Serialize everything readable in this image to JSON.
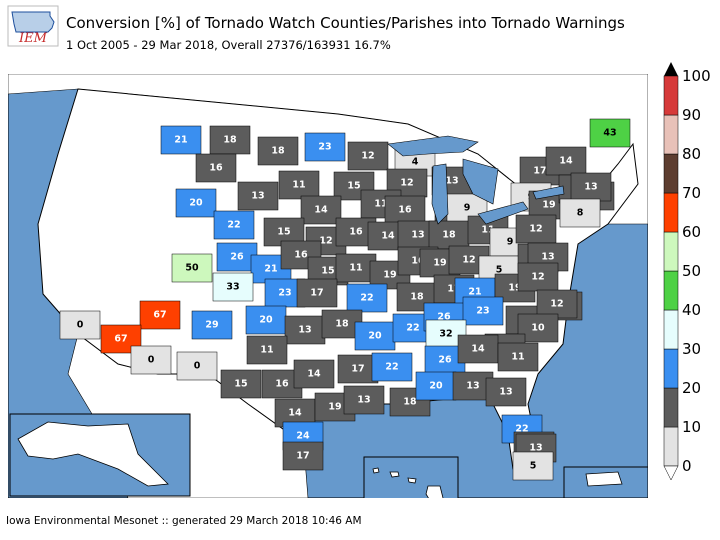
{
  "logo": {
    "text": "IEM"
  },
  "header": {
    "title": "Conversion [%] of Tornado Watch Counties/Parishes into Tornado Warnings",
    "subtitle": "1 Oct 2005 - 29 Mar 2018, Overall 27376/163931 16.7%"
  },
  "footer": {
    "text": "Iowa Environmental Mesonet :: generated 29 March 2018 10:46 AM"
  },
  "colors": {
    "ocean": "#6699cc",
    "land": "#ffffff",
    "border": "#000000",
    "bin_0_10": "#e3e3e3",
    "bin_10_20": "#5c5c5c",
    "bin_20_30": "#3a8ff0",
    "bin_30_40": "#e6fdfd",
    "bin_40_50": "#4ed145",
    "bin_50_60": "#cdf8bd",
    "bin_60_70": "#fe4000",
    "bin_70_80": "#5d3d30",
    "bin_80_90": "#e8c1b8",
    "bin_90_100": "#d63a3a"
  },
  "legend": {
    "ticks": [
      "0",
      "10",
      "20",
      "30",
      "40",
      "50",
      "60",
      "70",
      "80",
      "90",
      "100"
    ],
    "colors": [
      "#e3e3e3",
      "#5c5c5c",
      "#3a8ff0",
      "#e6fdfd",
      "#4ed145",
      "#cdf8bd",
      "#fe4000",
      "#5d3d30",
      "#e8c1b8",
      "#d63a3a"
    ]
  },
  "map_data": {
    "regions": [
      {
        "value": "21"
      },
      {
        "value": "18"
      },
      {
        "value": "16"
      },
      {
        "value": "18"
      },
      {
        "value": "23"
      },
      {
        "value": "12"
      },
      {
        "value": "4"
      },
      {
        "value": "43"
      },
      {
        "value": "20"
      },
      {
        "value": "13"
      },
      {
        "value": "11"
      },
      {
        "value": "15"
      },
      {
        "value": "12"
      },
      {
        "value": "13"
      },
      {
        "value": "17"
      },
      {
        "value": "14"
      },
      {
        "value": "22"
      },
      {
        "value": "14"
      },
      {
        "value": "11"
      },
      {
        "value": "16"
      },
      {
        "value": "13"
      },
      {
        "value": "9"
      },
      {
        "value": "9"
      },
      {
        "value": "19"
      },
      {
        "value": "12"
      },
      {
        "value": "12"
      },
      {
        "value": "13"
      },
      {
        "value": "15"
      },
      {
        "value": "12"
      },
      {
        "value": "16"
      },
      {
        "value": "14"
      },
      {
        "value": "13"
      },
      {
        "value": "18"
      },
      {
        "value": "11"
      },
      {
        "value": "9"
      },
      {
        "value": "12"
      },
      {
        "value": "8"
      },
      {
        "value": "50"
      },
      {
        "value": "26"
      },
      {
        "value": "21"
      },
      {
        "value": "16"
      },
      {
        "value": "15"
      },
      {
        "value": "11"
      },
      {
        "value": "19"
      },
      {
        "value": "16"
      },
      {
        "value": "19"
      },
      {
        "value": "12"
      },
      {
        "value": "5"
      },
      {
        "value": "12"
      },
      {
        "value": "13"
      },
      {
        "value": "33"
      },
      {
        "value": "23"
      },
      {
        "value": "17"
      },
      {
        "value": "22"
      },
      {
        "value": "18"
      },
      {
        "value": "17"
      },
      {
        "value": "21"
      },
      {
        "value": "19"
      },
      {
        "value": "12"
      },
      {
        "value": "0"
      },
      {
        "value": "67"
      },
      {
        "value": "29"
      },
      {
        "value": "20"
      },
      {
        "value": "13"
      },
      {
        "value": "18"
      },
      {
        "value": "20"
      },
      {
        "value": "22"
      },
      {
        "value": "26"
      },
      {
        "value": "23"
      },
      {
        "value": "15"
      },
      {
        "value": "14"
      },
      {
        "value": "12"
      },
      {
        "value": "10"
      },
      {
        "value": "67"
      },
      {
        "value": "11"
      },
      {
        "value": "32"
      },
      {
        "value": "13"
      },
      {
        "value": "0"
      },
      {
        "value": "0"
      },
      {
        "value": "15"
      },
      {
        "value": "16"
      },
      {
        "value": "14"
      },
      {
        "value": "17"
      },
      {
        "value": "22"
      },
      {
        "value": "26"
      },
      {
        "value": "14"
      },
      {
        "value": "11"
      },
      {
        "value": "14"
      },
      {
        "value": "19"
      },
      {
        "value": "13"
      },
      {
        "value": "18"
      },
      {
        "value": "20"
      },
      {
        "value": "13"
      },
      {
        "value": "13"
      },
      {
        "value": "24"
      },
      {
        "value": "17"
      },
      {
        "value": "22"
      },
      {
        "value": "14"
      },
      {
        "value": "13"
      },
      {
        "value": "5"
      }
    ]
  }
}
